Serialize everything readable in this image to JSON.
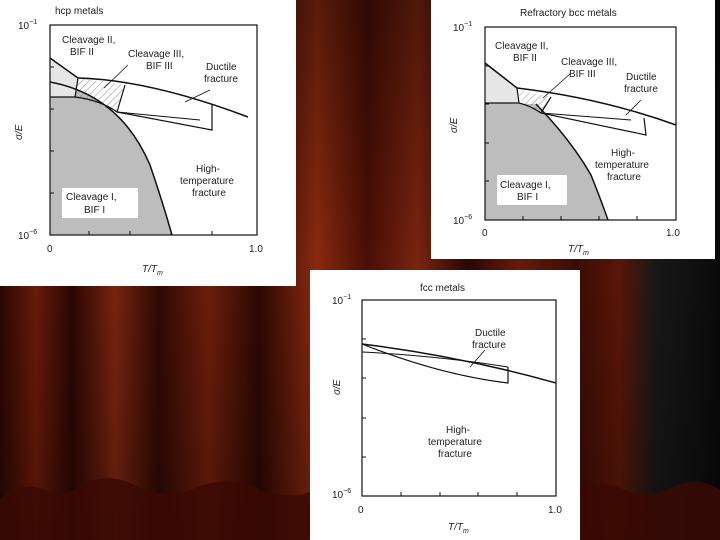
{
  "background": {
    "curtain_dark": "#1a0502",
    "curtain_mid": "#5a1608",
    "curtain_light": "#8a2a10",
    "curtain_right": "#0c0c0c"
  },
  "diagrams": [
    {
      "id": "hcp",
      "title": "hcp metals",
      "y_top": "10",
      "y_top_exp": "−1",
      "y_bottom": "10",
      "y_bottom_exp": "−6",
      "x_min": "0",
      "x_max": "1.0",
      "x_label_main": "T/T",
      "x_label_sub": "m",
      "y_label": "σ/E",
      "regions": {
        "cleavage_2_line1": "Cleavage II,",
        "cleavage_2_line2": "BIF II",
        "cleavage_3_line1": "Cleavage III,",
        "cleavage_3_line2": "BIF III",
        "ductile_line1": "Ductile",
        "ductile_line2": "fracture",
        "hightemp_line1": "High-",
        "hightemp_line2": "temperature",
        "hightemp_line3": "fracture",
        "cleavage_1_line1": "Cleavage I,",
        "cleavage_1_line2": "BIF I"
      }
    },
    {
      "id": "bcc",
      "title": "Refractory bcc metals",
      "y_top": "10",
      "y_top_exp": "−1",
      "y_bottom": "10",
      "y_bottom_exp": "−6",
      "x_min": "0",
      "x_max": "1.0",
      "x_label_main": "T/T",
      "x_label_sub": "m",
      "y_label": "σ/E",
      "regions": {
        "cleavage_2_line1": "Cleavage II,",
        "cleavage_2_line2": "BIF II",
        "cleavage_3_line1": "Cleavage III,",
        "cleavage_3_line2": "BIF III",
        "ductile_line1": "Ductile",
        "ductile_line2": "fracture",
        "hightemp_line1": "High-",
        "hightemp_line2": "temperature",
        "hightemp_line3": "fracture",
        "cleavage_1_line1": "Cleavage I,",
        "cleavage_1_line2": "BIF I"
      }
    },
    {
      "id": "fcc",
      "title": "fcc metals",
      "y_top": "10",
      "y_top_exp": "−1",
      "y_bottom": "10",
      "y_bottom_exp": "−6",
      "x_min": "0",
      "x_max": "1.0",
      "x_label_main": "T/T",
      "x_label_sub": "m",
      "y_label": "σ/E",
      "regions": {
        "ductile_line1": "Ductile",
        "ductile_line2": "fracture",
        "hightemp_line1": "High-",
        "hightemp_line2": "temperature",
        "hightemp_line3": "fracture"
      }
    }
  ]
}
